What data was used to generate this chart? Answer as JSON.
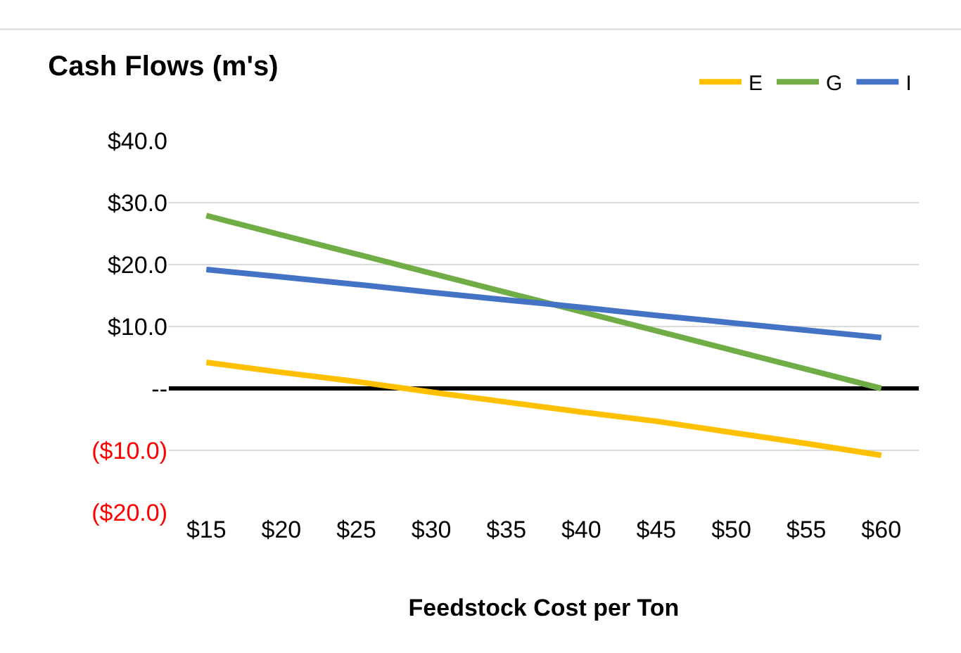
{
  "chart_data": {
    "type": "line",
    "title": "Cash Flows (m's)",
    "xlabel": "Feedstock Cost per Ton",
    "categories": [
      "$15",
      "$20",
      "$25",
      "$30",
      "$35",
      "$40",
      "$45",
      "$50",
      "$55",
      "$60"
    ],
    "series": [
      {
        "name": "E",
        "color": "#ffc000",
        "values": [
          4.2,
          2.6,
          1.1,
          -0.6,
          -2.2,
          -3.8,
          -5.3,
          -7.1,
          -8.9,
          -10.8
        ]
      },
      {
        "name": "G",
        "color": "#70ad47",
        "values": [
          27.9,
          24.8,
          21.7,
          18.6,
          15.5,
          12.4,
          9.3,
          6.2,
          3.1,
          0
        ]
      },
      {
        "name": "I",
        "color": "#4472c4",
        "values": [
          19.2,
          18.0,
          16.8,
          15.5,
          14.3,
          13.1,
          11.8,
          10.6,
          9.4,
          8.2
        ]
      }
    ],
    "ylim": [
      -20,
      40
    ],
    "yticks": [
      {
        "value": -20,
        "label": "($20.0)"
      },
      {
        "value": -10,
        "label": "($10.0)"
      },
      {
        "value": 0,
        "label": "--"
      },
      {
        "value": 10,
        "label": "$10.0"
      },
      {
        "value": 20,
        "label": "$20.0"
      },
      {
        "value": 30,
        "label": "$30.0"
      },
      {
        "value": 40,
        "label": "$40.0"
      }
    ],
    "grid": "y",
    "legend": "top right",
    "marker": "none",
    "line_style": "solid"
  }
}
